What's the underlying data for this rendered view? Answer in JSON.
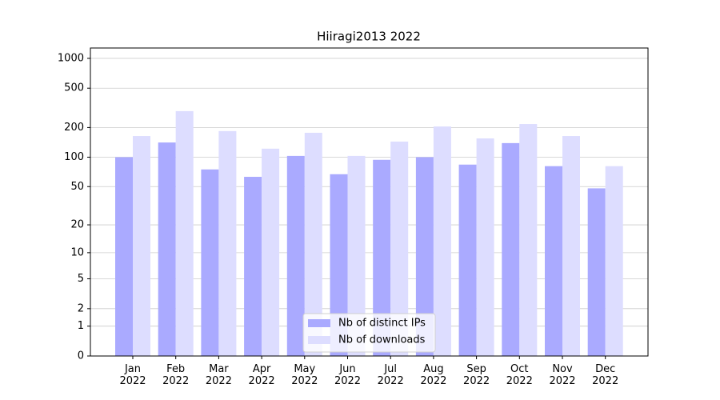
{
  "chart_data": {
    "type": "bar",
    "title": "Hiiragi2013 2022",
    "categories": [
      "Jan\n2022",
      "Feb\n2022",
      "Mar\n2022",
      "Apr\n2022",
      "May\n2022",
      "Jun\n2022",
      "Jul\n2022",
      "Aug\n2022",
      "Sep\n2022",
      "Oct\n2022",
      "Nov\n2022",
      "Dec\n2022"
    ],
    "series": [
      {
        "name": "Nb of distinct IPs",
        "color": "#aaaaff",
        "values": [
          100,
          141,
          75,
          63,
          103,
          67,
          94,
          100,
          84,
          139,
          81,
          48
        ]
      },
      {
        "name": "Nb of downloads",
        "color": "#ddddff",
        "values": [
          164,
          293,
          184,
          122,
          177,
          103,
          144,
          205,
          155,
          217,
          164,
          81
        ]
      }
    ],
    "yscale": "log1p",
    "ylim": [
      0,
      1272
    ],
    "yticks": [
      0,
      1,
      2,
      5,
      10,
      20,
      50,
      100,
      200,
      500,
      1000
    ],
    "grid": true,
    "legend": "lower center"
  }
}
